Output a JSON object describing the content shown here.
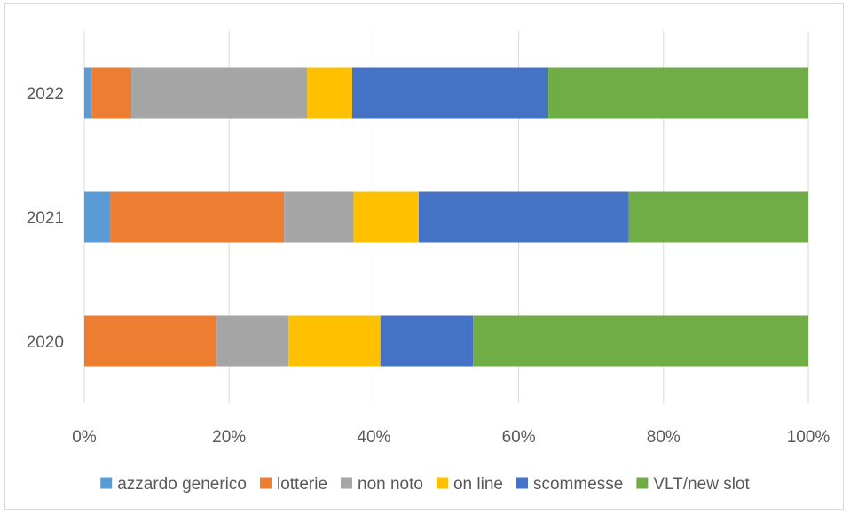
{
  "chart_data": {
    "type": "bar",
    "orientation": "horizontal",
    "stacked": "100%",
    "title": "",
    "xlabel": "",
    "ylabel": "",
    "categories": [
      "2022",
      "2021",
      "2020"
    ],
    "xlim": [
      0,
      100
    ],
    "x_ticks": [
      "0%",
      "20%",
      "40%",
      "60%",
      "80%",
      "100%"
    ],
    "grid": true,
    "legend_position": "bottom",
    "series": [
      {
        "name": "azzardo generico",
        "color": "#5b9bd5",
        "values": [
          1,
          3.6,
          0
        ]
      },
      {
        "name": "lotterie",
        "color": "#ed7d31",
        "values": [
          5.5,
          24,
          18.3
        ]
      },
      {
        "name": "non noto",
        "color": "#a5a5a5",
        "values": [
          24.3,
          9.6,
          9.9
        ]
      },
      {
        "name": "on line",
        "color": "#ffc000",
        "values": [
          6.2,
          9,
          12.7
        ]
      },
      {
        "name": "scommesse",
        "color": "#4472c4",
        "values": [
          27.1,
          29,
          12.8
        ]
      },
      {
        "name": "VLT/new slot",
        "color": "#70ad47",
        "values": [
          35.9,
          24.8,
          46.3
        ]
      }
    ]
  }
}
